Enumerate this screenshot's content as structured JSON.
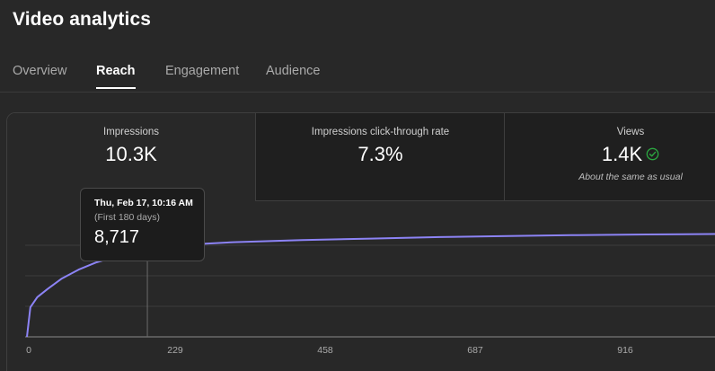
{
  "page": {
    "title": "Video analytics"
  },
  "tabs": [
    {
      "label": "Overview"
    },
    {
      "label": "Reach"
    },
    {
      "label": "Engagement"
    },
    {
      "label": "Audience"
    }
  ],
  "metrics": [
    {
      "label": "Impressions",
      "value": "10.3K"
    },
    {
      "label": "Impressions click-through rate",
      "value": "7.3%"
    },
    {
      "label": "Views",
      "value": "1.4K",
      "note": "About the same as usual",
      "status_icon": "check-circle-icon"
    }
  ],
  "tooltip": {
    "date": "Thu, Feb 17, 10:16 AM",
    "subtitle": "(First 180 days)",
    "value": "8,717"
  },
  "colors": {
    "background": "#282828",
    "line": "#8c83f5",
    "positive": "#2ba640"
  },
  "chart_data": {
    "type": "line",
    "ticks": [
      "0",
      "229",
      "458",
      "687",
      "916"
    ],
    "xlim": [
      0,
      1000
    ],
    "ylim": [
      0,
      12000
    ],
    "gridlines": true,
    "highlight": {
      "x": 175,
      "y": 8717
    },
    "x": [
      0,
      5,
      15,
      30,
      50,
      75,
      100,
      130,
      160,
      175,
      200,
      260,
      300,
      400,
      500,
      600,
      700,
      800,
      900,
      1000
    ],
    "y": [
      0,
      2900,
      3900,
      4700,
      5700,
      6600,
      7300,
      7900,
      8200,
      8717,
      8900,
      9150,
      9300,
      9500,
      9650,
      9800,
      9900,
      10000,
      10060,
      10100
    ]
  }
}
